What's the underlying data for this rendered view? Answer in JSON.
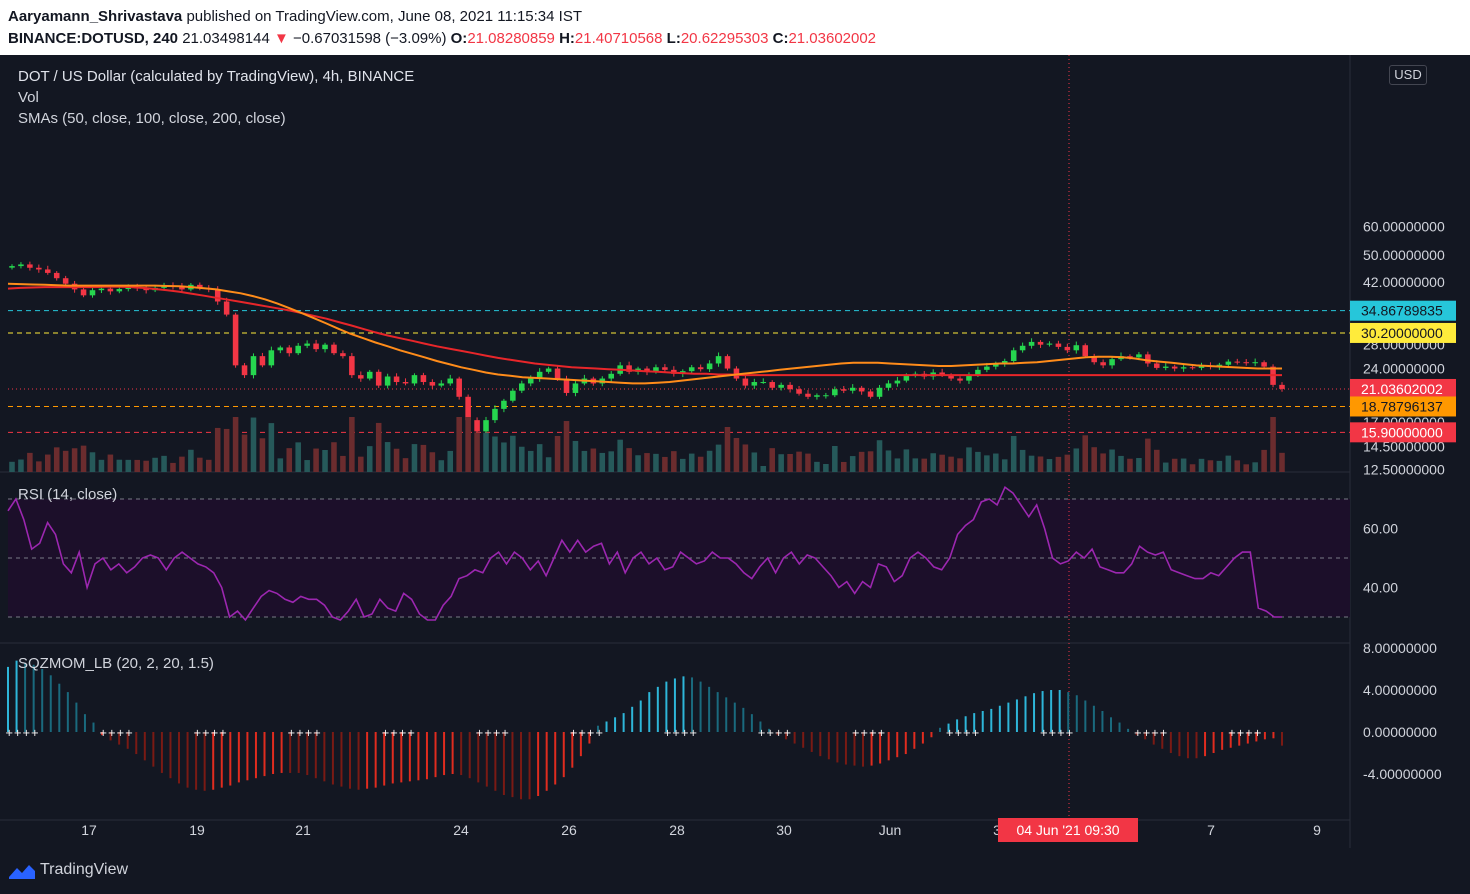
{
  "header": {
    "author": "Aaryamann_Shrivastava",
    "published": "published on TradingView.com, June 08, 2021 11:15:34 IST",
    "symbol": "BINANCE:DOTUSD, 240",
    "last": "21.03498144",
    "change": "−0.67031598 (−3.09%)",
    "o_label": "O:",
    "o": "21.08280859",
    "h_label": "H:",
    "h": "21.40710568",
    "l_label": "L:",
    "l": "20.62295303",
    "c_label": "C:",
    "c": "21.03602002"
  },
  "legend": {
    "title": "DOT / US Dollar (calculated by TradingView), 4h, BINANCE",
    "vol": "Vol",
    "smas": "SMAs (50, close, 100, close, 200, close)",
    "rsi": "RSI (14, close)",
    "sqz": "SQZMOM_LB (20, 2, 20, 1.5)"
  },
  "currency_badge": "USD",
  "footer": {
    "brand": "TradingView"
  },
  "colors": {
    "background": "#131722",
    "up": "#26d64f",
    "down": "#f23645",
    "vol_up": "#26595a",
    "vol_down": "#6b2c2e",
    "sma_fast": "#ff8c1a",
    "sma_slow": "#e8262a",
    "rsi_line": "#9c27b0",
    "rsi_band": "#1c0f2a",
    "mom_pos": "#2eb6d9",
    "mom_neg": "#e02c1f",
    "cyan_line": "#26c6da",
    "yellow_line": "#ffeb3b",
    "orange_line": "#ff9800",
    "red_line": "#f23645"
  },
  "chart_data": [
    {
      "type": "candlestick",
      "title": "DOT / US Dollar (calculated by TradingView), 4h, BINANCE",
      "x_ticks": [
        "17",
        "19",
        "21",
        "24",
        "26",
        "28",
        "30",
        "Jun",
        "3",
        "7",
        "9"
      ],
      "crosshair_x_label": "04 Jun '21   09:30",
      "y_scale": "log",
      "y_ticks": [
        "60.00000000",
        "50.00000000",
        "42.00000000",
        "28.00000000",
        "24.00000000",
        "20.00000000",
        "17.00000000",
        "14.50000000",
        "12.50000000"
      ],
      "horizontal_levels": [
        {
          "value": 34.86789835,
          "label": "34.86789835",
          "color": "#26c6da",
          "style": "dashed"
        },
        {
          "value": 30.2,
          "label": "30.20000000",
          "color": "#ffeb3b",
          "style": "dashed"
        },
        {
          "value": 21.03602002,
          "label": "21.03602002",
          "color": "#f23645",
          "style": "dotted"
        },
        {
          "value": 18.78796137,
          "label": "18.78796137",
          "color": "#ff9800",
          "style": "dashed"
        },
        {
          "value": 15.9,
          "label": "15.90000000",
          "color": "#f23645",
          "style": "dashed"
        }
      ],
      "close": [
        46.5,
        47.0,
        46.0,
        45.5,
        44.5,
        43.0,
        41.5,
        40.0,
        38.5,
        39.8,
        40.2,
        39.5,
        40.1,
        40.5,
        40.3,
        39.8,
        40.4,
        41.0,
        40.7,
        40.0,
        41.2,
        40.4,
        40.0,
        37.0,
        34.0,
        24.5,
        23.0,
        26.0,
        24.5,
        27.0,
        27.5,
        26.5,
        27.8,
        28.2,
        27.2,
        28.0,
        26.5,
        26.0,
        23.0,
        22.5,
        23.5,
        21.5,
        22.8,
        22.0,
        21.8,
        23.0,
        22.0,
        21.5,
        21.8,
        22.5,
        20.0,
        17.2,
        16.0,
        17.2,
        18.5,
        19.5,
        20.8,
        21.8,
        22.5,
        23.5,
        24.0,
        22.5,
        20.5,
        21.8,
        22.5,
        21.8,
        22.5,
        23.2,
        24.5,
        23.5,
        24.0,
        23.5,
        24.2,
        23.8,
        23.2,
        23.6,
        24.2,
        23.9,
        24.8,
        26.0,
        24.0,
        22.5,
        21.5,
        22.0,
        22.0,
        21.2,
        21.6,
        21.0,
        20.4,
        20.0,
        20.2,
        20.2,
        21.0,
        20.8,
        21.2,
        20.7,
        20.0,
        21.2,
        21.8,
        22.2,
        23.0,
        23.2,
        22.8,
        23.4,
        23.0,
        22.5,
        22.2,
        23.0,
        23.8,
        24.3,
        24.8,
        25.2,
        27.0,
        27.8,
        28.5,
        28.0,
        28.2,
        27.6,
        27.0,
        27.9,
        26.0,
        25.0,
        24.5,
        25.5,
        26.0,
        25.8,
        26.3,
        24.8,
        24.1,
        24.3,
        24.0,
        24.2,
        24.1,
        24.4,
        24.3,
        24.6,
        25.1,
        25.0,
        24.9,
        25.0,
        24.3,
        21.6,
        21.04
      ],
      "sma_fast": [
        41.5,
        41.4,
        41.3,
        41.2,
        41.1,
        41.0,
        41.0,
        41.0,
        41.0,
        41.0,
        41.0,
        41.0,
        41.0,
        40.9,
        40.8,
        40.6,
        40.3,
        40.0,
        39.5,
        39.0,
        38.3,
        37.5,
        36.5,
        35.4,
        34.3,
        33.2,
        32.1,
        31.0,
        30.0,
        29.2,
        28.4,
        27.7,
        27.0,
        26.4,
        25.8,
        25.2,
        24.7,
        24.2,
        23.8,
        23.4,
        23.1,
        22.9,
        22.7,
        22.6,
        22.5,
        22.4,
        22.3,
        22.2,
        22.1,
        22.0,
        21.9,
        21.8,
        21.8,
        21.9,
        22.0,
        22.2,
        22.4,
        22.6,
        22.8,
        23.0,
        23.2,
        23.4,
        23.6,
        23.8,
        24.0,
        24.2,
        24.4,
        24.6,
        24.8,
        24.9,
        24.9,
        24.9,
        24.8,
        24.7,
        24.6,
        24.5,
        24.4,
        24.4,
        24.5,
        24.6,
        24.7,
        24.8,
        24.8,
        24.9,
        25.0,
        25.2,
        25.4,
        25.6,
        25.8,
        25.9,
        25.9,
        25.8,
        25.6,
        25.3,
        25.1,
        24.9,
        24.7,
        24.5,
        24.4,
        24.3,
        24.2,
        24.1,
        24.0,
        24.0,
        24.0
      ],
      "sma_slow": [
        40.2,
        40.4,
        40.5,
        40.6,
        40.6,
        40.6,
        40.6,
        40.6,
        40.7,
        40.7,
        40.6,
        40.4,
        40.1,
        39.8,
        39.4,
        38.9,
        38.4,
        37.9,
        37.4,
        36.9,
        36.4,
        35.9,
        35.4,
        34.9,
        34.3,
        33.7,
        33.1,
        32.4,
        31.7,
        31.0,
        30.3,
        29.7,
        29.2,
        28.7,
        28.2,
        27.7,
        27.3,
        26.9,
        26.5,
        26.1,
        25.7,
        25.4,
        25.1,
        24.8,
        24.6,
        24.4,
        24.2,
        24.1,
        24.0,
        23.9,
        23.8,
        23.7,
        23.6,
        23.5,
        23.4,
        23.3,
        23.2,
        23.2,
        23.1,
        23.1,
        23.0,
        23.0,
        23.0,
        23.0,
        23.0,
        23.0,
        23.0,
        23.0,
        23.0,
        23.0,
        23.0,
        23.0,
        23.0,
        23.0,
        23.0,
        23.0,
        23.0,
        23.0,
        23.0,
        23.0,
        23.0,
        23.0,
        23.0,
        23.0,
        23.0,
        23.0,
        23.0,
        23.0,
        23.0,
        23.0,
        23.0,
        23.0,
        23.0,
        23.0,
        23.0,
        23.0,
        23.0,
        23.0,
        23.0,
        23.0,
        23.0,
        23.0,
        23.0,
        23.0,
        23.0
      ]
    },
    {
      "type": "line",
      "title": "RSI (14, close)",
      "y_ticks": [
        "60.00",
        "40.00"
      ],
      "band": [
        30,
        70
      ],
      "midline": 50,
      "values": [
        66,
        70,
        63,
        53,
        55,
        62,
        58,
        48,
        45,
        52,
        40,
        48,
        50,
        46,
        48,
        45,
        47,
        50,
        51,
        50,
        46,
        50,
        52,
        50,
        48,
        47,
        45,
        40,
        30,
        32,
        29,
        33,
        37,
        39,
        38,
        36,
        35,
        37,
        36,
        36,
        34,
        30,
        29,
        32,
        36,
        30,
        31,
        36,
        33,
        32,
        38,
        36,
        31,
        29,
        29,
        34,
        37,
        43,
        44,
        46,
        45,
        50,
        52,
        48,
        52,
        50,
        46,
        49,
        44,
        50,
        56,
        52,
        56,
        52,
        54,
        55,
        48,
        52,
        45,
        50,
        52,
        48,
        50,
        46,
        47,
        52,
        50,
        48,
        49,
        52,
        50,
        50,
        48,
        45,
        43,
        47,
        50,
        45,
        50,
        52,
        48,
        51,
        50,
        47,
        44,
        40,
        42,
        38,
        42,
        40,
        48,
        47,
        42,
        44,
        50,
        52,
        50,
        47,
        46,
        50,
        58,
        61,
        63,
        69,
        70,
        68,
        74,
        72,
        68,
        64,
        68,
        60,
        50,
        48,
        49,
        52,
        50,
        53,
        47,
        46,
        45,
        45,
        48,
        54,
        52,
        51,
        52,
        46,
        45,
        44,
        43,
        43,
        45,
        44,
        47,
        50,
        52,
        52,
        33,
        32,
        30,
        30
      ]
    },
    {
      "type": "bar",
      "title": "SQZMOM_LB (20, 2, 20, 1.5)",
      "y_ticks": [
        "8.00000000",
        "4.00000000",
        "0.00000000",
        "-4.00000000"
      ],
      "values": [
        6.2,
        6.8,
        6.6,
        6.4,
        6.0,
        5.4,
        4.6,
        3.8,
        2.8,
        1.7,
        0.9,
        -0.3,
        -0.8,
        -1.2,
        -1.6,
        -2.1,
        -2.7,
        -3.3,
        -3.9,
        -4.4,
        -4.9,
        -5.3,
        -5.5,
        -5.6,
        -5.5,
        -5.3,
        -5.1,
        -4.8,
        -4.6,
        -4.4,
        -4.2,
        -4.0,
        -3.9,
        -3.9,
        -3.9,
        -4.1,
        -4.4,
        -4.7,
        -5.0,
        -5.2,
        -5.4,
        -5.5,
        -5.4,
        -5.3,
        -5.1,
        -4.9,
        -4.8,
        -4.7,
        -4.6,
        -4.5,
        -4.3,
        -4.1,
        -4.0,
        -4.1,
        -4.4,
        -4.8,
        -5.2,
        -5.6,
        -6.0,
        -6.2,
        -6.4,
        -6.4,
        -6.1,
        -5.6,
        -5.0,
        -4.3,
        -3.4,
        -2.3,
        -1.1,
        0.6,
        1.0,
        1.4,
        1.8,
        2.4,
        3.0,
        3.8,
        4.3,
        4.8,
        5.1,
        5.3,
        5.2,
        4.8,
        4.3,
        3.8,
        3.3,
        2.8,
        2.3,
        1.7,
        1.0,
        0.3,
        -0.3,
        -0.7,
        -1.1,
        -1.5,
        -1.9,
        -2.3,
        -2.6,
        -2.9,
        -3.1,
        -3.2,
        -3.3,
        -3.2,
        -3.0,
        -2.7,
        -2.4,
        -2.1,
        -1.6,
        -1.1,
        -0.5,
        0.4,
        0.8,
        1.2,
        1.5,
        1.8,
        2.0,
        2.2,
        2.5,
        2.8,
        3.1,
        3.4,
        3.7,
        3.9,
        4.0,
        4.0,
        3.8,
        3.5,
        3.0,
        2.5,
        2.0,
        1.4,
        0.9,
        0.3,
        -0.3,
        -0.7,
        -1.2,
        -1.6,
        -2.0,
        -2.3,
        -2.5,
        -2.5,
        -2.3,
        -2.0,
        -1.7,
        -1.5,
        -1.3,
        -1.1,
        -0.9,
        -0.7,
        -0.6,
        -1.3
      ]
    }
  ]
}
